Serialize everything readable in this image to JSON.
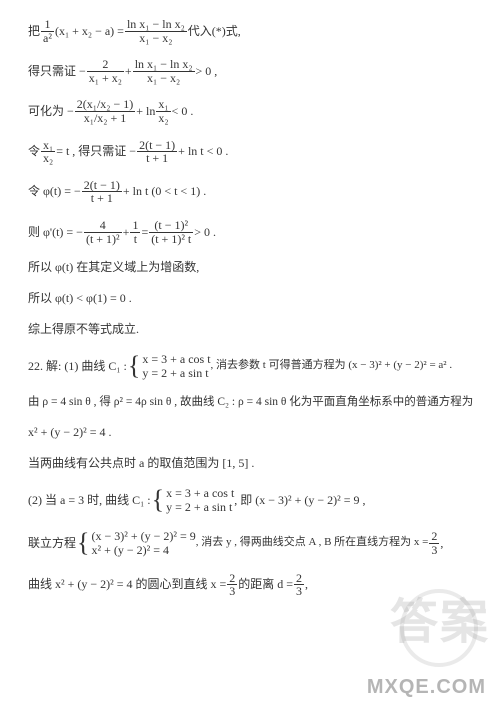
{
  "colors": {
    "text": "#333333",
    "bg": "#ffffff",
    "watermark": "rgba(150,150,150,0.25)",
    "footer": "rgba(120,120,120,0.55)"
  },
  "typography": {
    "body_fontsize_pt": 9,
    "sub_fontsize_pt": 6,
    "watermark_fontsize_pt": 36,
    "footer_fontsize_pt": 15,
    "font_family": "SimSun / Times"
  },
  "lines": {
    "l1a": "把 ",
    "l1b": "(x₁ + x₂ − a) = ",
    "l1c": " 代入(*)式,",
    "f1": {
      "num": "1",
      "den": "a²"
    },
    "f2": {
      "num": "ln x₁ − ln x₂",
      "den": "x₁ − x₂"
    },
    "l2a": "得只需证 − ",
    "l2b": " + ",
    "l2c": " > 0 ,",
    "f3": {
      "num": "2",
      "den": "x₁ + x₂"
    },
    "f4": {
      "num": "ln x₁ − ln x₂",
      "den": "x₁ − x₂"
    },
    "l3a": "可化为 − ",
    "l3b": " + ln ",
    "l3c": " < 0 .",
    "f5": {
      "num": "2(x₁/x₂ − 1)",
      "den": "x₁/x₂ + 1"
    },
    "f6": {
      "num": "x₁",
      "den": "x₂"
    },
    "l4a": "令 ",
    "l4b": " = t ,  得只需证 − ",
    "l4c": " + ln t < 0 .",
    "f7": {
      "num": "x₁",
      "den": "x₂"
    },
    "f8": {
      "num": "2(t − 1)",
      "den": "t + 1"
    },
    "l5a": "令 φ(t) = − ",
    "l5b": " + ln t (0 < t < 1) .",
    "f9": {
      "num": "2(t − 1)",
      "den": "t + 1"
    },
    "l6a": "则 φ'(t) = − ",
    "l6b": " + ",
    "l6c": " = ",
    "l6d": " > 0 .",
    "f10": {
      "num": "4",
      "den": "(t + 1)²"
    },
    "f11": {
      "num": "1",
      "den": "t"
    },
    "f12": {
      "num": "(t − 1)²",
      "den": "(t + 1)² t"
    },
    "l7": "所以 φ(t) 在其定义域上为增函数,",
    "l8": "所以 φ(t) < φ(1) = 0 .",
    "l9": "综上得原不等式成立.",
    "l10a": "22. 解:  (1) 曲线 C₁ : ",
    "l10b": " , 消去参数 t 可得普通方程为 (x − 3)² + (y − 2)² = a² .",
    "sys1a": "x = 3 + a cos t",
    "sys1b": "y = 2 + a sin t",
    "l11": "由 ρ = 4 sin θ , 得 ρ² = 4ρ sin θ , 故曲线 C₂ : ρ = 4 sin θ 化为平面直角坐标系中的普通方程为",
    "l12": "x² + (y − 2)² = 4 .",
    "l13": "当两曲线有公共点时 a 的取值范围为 [1, 5] .",
    "l14a": " (2) 当 a = 3 时, 曲线 C₁ : ",
    "l14b": " , 即 (x − 3)² + (y − 2)² = 9 ,",
    "sys2a": "x = 3 + a cos t",
    "sys2b": "y = 2 + a sin t",
    "l15a": "联立方程 ",
    "l15b": " , 消去 y , 得两曲线交点 A , B 所在直线方程为 x = ",
    "l15c": " ,",
    "sys3a": "(x − 3)² + (y − 2)² = 9",
    "sys3b": "x² + (y − 2)² = 4",
    "f13": {
      "num": "2",
      "den": "3"
    },
    "l16a": "曲线 x² + (y − 2)² = 4 的圆心到直线 x = ",
    "l16b": " 的距离 d = ",
    "l16c": " ,",
    "f14": {
      "num": "2",
      "den": "3"
    },
    "f15": {
      "num": "2",
      "den": "3"
    }
  },
  "watermark_text": "答案",
  "footer_text": "MXQE.COM"
}
